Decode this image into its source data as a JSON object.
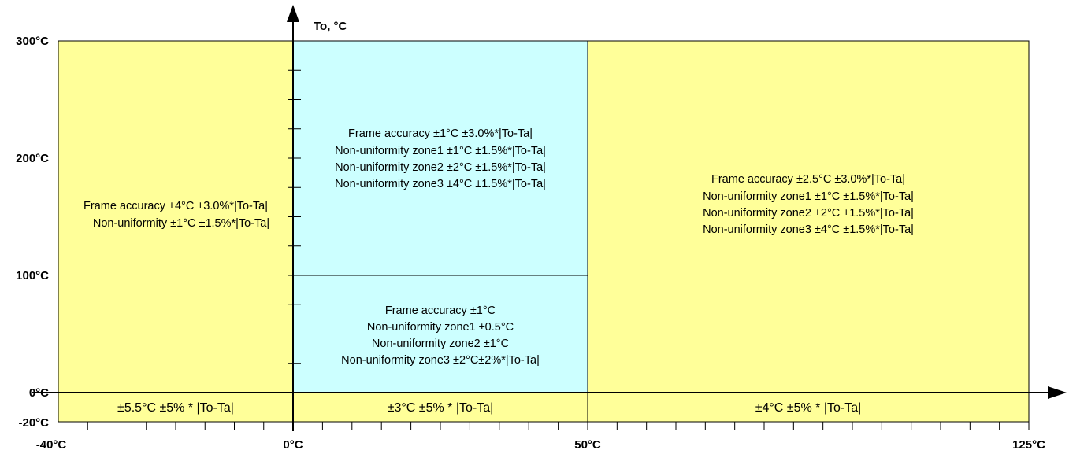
{
  "colors": {
    "yellow_zone": "#ffff99",
    "cyan_zone": "#ccffff",
    "line": "#000000"
  },
  "axes": {
    "y_title": "To, °C",
    "y_ticks": [
      "300°C",
      "200°C",
      "100°C",
      "0°C",
      "-20°C"
    ],
    "x_ticks": [
      "-40°C",
      "0°C",
      "50°C",
      "125°C"
    ]
  },
  "zones": {
    "left_upper": {
      "lines": [
        "Frame accuracy ±4°C ±3.0%*|To-Ta|",
        "Non-uniformity ±1°C ±1.5%*|To-Ta|"
      ]
    },
    "center_top": {
      "lines": [
        "Frame accuracy ±1°C ±3.0%*|To-Ta|",
        "Non-uniformity zone1  ±1°C ±1.5%*|To-Ta|",
        "Non-uniformity zone2  ±2°C ±1.5%*|To-Ta|",
        "Non-uniformity zone3  ±4°C ±1.5%*|To-Ta|"
      ]
    },
    "center_mid": {
      "lines": [
        "Frame accuracy ±1°C",
        "Non-uniformity zone1 ±0.5°C",
        "Non-uniformity zone2  ±1°C",
        "Non-uniformity zone3  ±2°C±2%*|To-Ta|"
      ]
    },
    "right_upper": {
      "lines": [
        "Frame accuracy ±2.5°C ±3.0%*|To-Ta|",
        "Non-uniformity zone1  ±1°C ±1.5%*|To-Ta|",
        "Non-uniformity zone2  ±2°C ±1.5%*|To-Ta|",
        "Non-uniformity zone3  ±4°C ±1.5%*|To-Ta|"
      ]
    },
    "bottom_left": {
      "text": "±5.5°C ±5% * |To-Ta|"
    },
    "bottom_center": {
      "text": "±3°C ±5% * |To-Ta|"
    },
    "bottom_right": {
      "text": "±4°C ±5% * |To-Ta|"
    }
  }
}
